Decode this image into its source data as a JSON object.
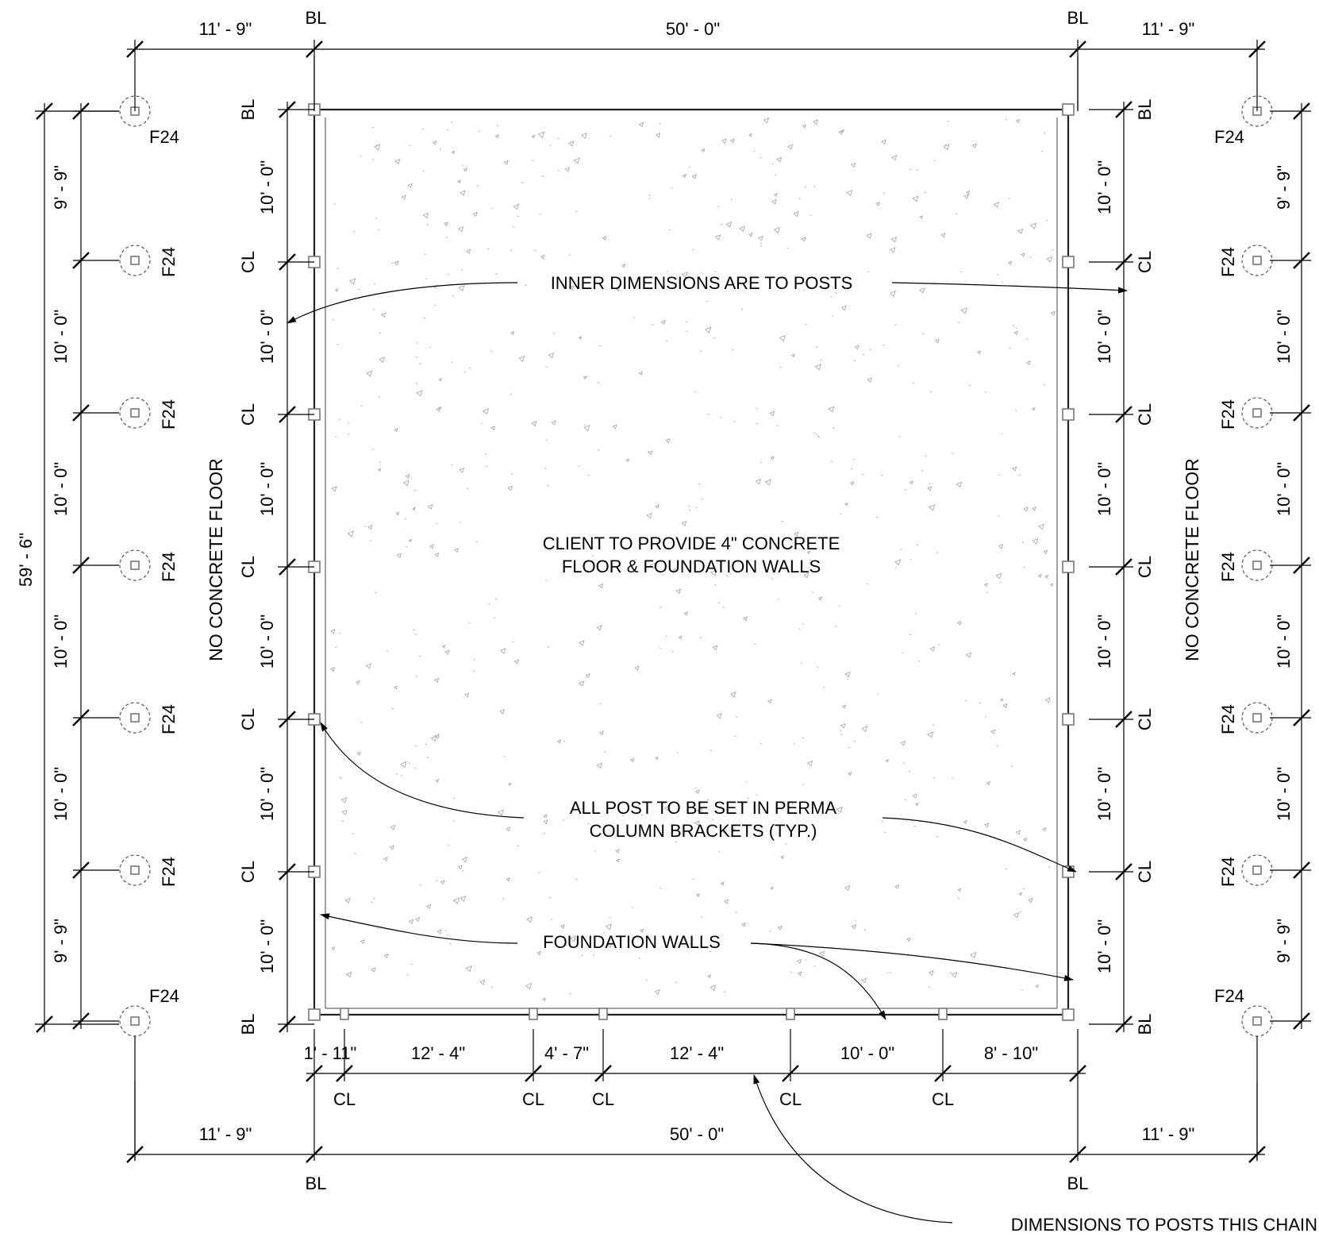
{
  "dimensions": {
    "overhang": "11' - 9\"",
    "width": "50' - 0\"",
    "overall_depth": "59' - 6\"",
    "bay": "10' - 0\"",
    "end_bay": "9' - 9\"",
    "bottom_chain": [
      "1' - 11\"",
      "12' - 4\"",
      "4' - 7\"",
      "12' - 4\"",
      "10' - 0\"",
      "8' - 10\""
    ]
  },
  "symbols": {
    "centerline": "CL",
    "building_line": "BL",
    "footing": "F24"
  },
  "notes": {
    "inner_dimensions": "INNER DIMENSIONS ARE TO POSTS",
    "client_line1": "CLIENT TO PROVIDE 4\" CONCRETE",
    "client_line2": "FLOOR & FOUNDATION WALLS",
    "post_line1": "ALL POST TO BE SET IN PERMA",
    "post_line2": "COLUMN BRACKETS (TYP.)",
    "foundation_walls": "FOUNDATION WALLS",
    "no_concrete": "NO CONCRETE FLOOR",
    "chain_note": "DIMENSIONS TO POSTS THIS CHAIN"
  }
}
